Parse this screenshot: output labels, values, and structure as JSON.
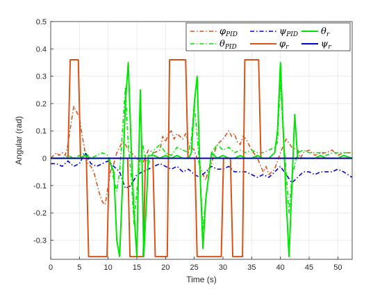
{
  "chart_data": {
    "type": "line",
    "xlabel": "Time (s)",
    "ylabel": "Angular (rad)",
    "xlim": [
      0,
      52.5
    ],
    "ylim": [
      -0.37,
      0.5
    ],
    "xticks": [
      "0",
      "5",
      "10",
      "15",
      "20",
      "25",
      "30",
      "35",
      "40",
      "45",
      "50"
    ],
    "yticks": [
      "-0.3",
      "-0.2",
      "-0.1",
      "0",
      "0.1",
      "0.2",
      "0.3",
      "0.4",
      "0.5"
    ],
    "grid": true,
    "legend_position": "top-right",
    "colors": {
      "phi": "#d95319",
      "psi": "#0000cd",
      "theta": "#00e600",
      "axis": "#262626",
      "grid": "#e6e6e6"
    },
    "series": [
      {
        "name": "φ_PID",
        "base": "φ",
        "sub": "PID",
        "key": "phi_pid",
        "style": "dashdot",
        "color": "#d95319",
        "x": [
          0,
          1,
          1.5,
          2,
          2.5,
          3,
          3.5,
          4,
          4.5,
          5,
          5.5,
          6,
          6.5,
          7,
          7.5,
          8,
          8.5,
          9,
          9.5,
          10,
          10.5,
          11,
          11.5,
          12,
          12.5,
          13,
          13.5,
          14,
          14.5,
          15,
          16,
          17,
          18,
          19,
          19.5,
          20,
          20.5,
          21,
          21.5,
          22,
          22.5,
          23,
          23.5,
          24,
          25,
          26,
          26.5,
          27,
          27.5,
          28,
          28.5,
          29,
          30,
          31,
          31.5,
          32,
          32.5,
          33,
          33.5,
          34,
          35,
          36,
          37,
          37.5,
          38,
          39,
          40,
          41,
          42,
          43,
          43.5,
          44,
          45,
          46,
          47,
          48,
          49,
          50,
          51,
          52.5
        ],
        "y": [
          0,
          0.02,
          0.01,
          0.02,
          0.01,
          0.05,
          0.12,
          0.19,
          0.17,
          0.15,
          0.08,
          0.02,
          -0.02,
          -0.03,
          -0.05,
          -0.09,
          -0.13,
          -0.16,
          -0.17,
          -0.1,
          -0.04,
          -0.02,
          0.02,
          0.04,
          0.06,
          0.05,
          0.03,
          0.02,
          0.01,
          0,
          -0.02,
          0.03,
          0.02,
          0.03,
          0.08,
          0.06,
          0.09,
          0.1,
          0.07,
          0.09,
          0.08,
          0.07,
          0.09,
          0.05,
          0.03,
          -0.03,
          -0.06,
          -0.08,
          -0.04,
          -0.02,
          0.02,
          0.05,
          0.07,
          0.1,
          0.08,
          0.09,
          0.06,
          0.05,
          0.08,
          0.07,
          0.03,
          0,
          -0.05,
          -0.03,
          -0.06,
          -0.04,
          0.02,
          0.07,
          0.04,
          0.03,
          0,
          0.02,
          0.03,
          0.01,
          0.02,
          0.02,
          0.03,
          0.01,
          0.02,
          0.02
        ]
      },
      {
        "name": "θ_PID",
        "base": "θ",
        "sub": "PID",
        "key": "theta_pid",
        "style": "dashdot",
        "color": "#00e600",
        "x": [
          0,
          2,
          3,
          4,
          5,
          6,
          7,
          8,
          9,
          10,
          10.5,
          11,
          11.5,
          12,
          12.5,
          13,
          13.5,
          14,
          14.5,
          15,
          15.5,
          16,
          16.5,
          17,
          18,
          19,
          20,
          21,
          22,
          23,
          24,
          24.5,
          25,
          25.5,
          26,
          26.5,
          27,
          28,
          29,
          30,
          31,
          32,
          33,
          34,
          35,
          36,
          37,
          38,
          39,
          39.5,
          40,
          40.5,
          41,
          41.5,
          42,
          43,
          44,
          45,
          46,
          47,
          48,
          49,
          50,
          51,
          52.5
        ],
        "y": [
          0,
          0,
          0.01,
          0,
          0.01,
          0.02,
          0,
          0.01,
          0.02,
          0.01,
          -0.02,
          -0.08,
          -0.12,
          -0.05,
          0.1,
          0.26,
          0.05,
          -0.06,
          -0.24,
          -0.12,
          -0.02,
          0.05,
          0,
          -0.02,
          0.03,
          0.05,
          0.02,
          0.01,
          0.04,
          0.03,
          0.02,
          0.07,
          0.2,
          0.08,
          -0.05,
          -0.26,
          -0.15,
          0.02,
          0.05,
          0.03,
          0.04,
          0.02,
          0.03,
          0.02,
          0.03,
          0.02,
          0.02,
          0.03,
          0.04,
          0.06,
          0.29,
          0.08,
          -0.05,
          -0.2,
          -0.07,
          0.02,
          0.03,
          0.02,
          0.02,
          0.02,
          0.01,
          0.02,
          0.02,
          0.02,
          0.02
        ]
      },
      {
        "name": "ψ_PID",
        "base": "ψ",
        "sub": "PID",
        "key": "psi_pid",
        "style": "dashdot",
        "color": "#0000cd",
        "x": [
          0,
          1,
          2,
          3,
          4,
          5,
          6,
          7,
          8,
          9,
          10,
          11,
          12,
          13,
          14,
          15,
          16,
          17,
          18,
          19,
          20,
          21,
          22,
          23,
          24,
          25,
          26,
          27,
          28,
          29,
          30,
          31,
          32,
          33,
          34,
          35,
          36,
          37,
          38,
          39,
          40,
          41,
          42,
          43,
          44,
          45,
          46,
          47,
          48,
          49,
          50,
          51,
          52.5
        ],
        "y": [
          -0.02,
          -0.02,
          -0.03,
          -0.01,
          -0.03,
          -0.02,
          0.02,
          -0.02,
          -0.03,
          -0.02,
          -0.01,
          -0.03,
          -0.05,
          -0.11,
          -0.1,
          -0.06,
          -0.05,
          -0.04,
          -0.03,
          -0.02,
          -0.03,
          -0.04,
          -0.03,
          -0.05,
          -0.04,
          -0.06,
          -0.07,
          -0.05,
          -0.03,
          -0.04,
          -0.04,
          -0.03,
          -0.05,
          -0.05,
          -0.05,
          -0.06,
          -0.07,
          -0.06,
          -0.07,
          -0.05,
          -0.03,
          -0.06,
          -0.09,
          -0.07,
          -0.05,
          -0.05,
          -0.06,
          -0.05,
          -0.05,
          -0.05,
          -0.04,
          -0.05,
          -0.07
        ]
      },
      {
        "name": "φ_r",
        "base": "φ",
        "sub": "r",
        "key": "phi_r",
        "style": "solid",
        "color": "#d95319",
        "x": [
          0,
          3,
          3.4,
          4.8,
          5.2,
          6.2,
          6.6,
          9.8,
          10.2,
          11.6,
          12,
          13.4,
          13.8,
          16.1,
          16.5,
          17.8,
          18.2,
          20.3,
          20.7,
          23.5,
          23.9,
          25.1,
          25.5,
          29.7,
          30.1,
          31.3,
          31.7,
          33.4,
          33.8,
          36.2,
          36.6,
          37.8,
          38.2,
          52.5
        ],
        "y": [
          0,
          0,
          0.36,
          0.36,
          0,
          0,
          -0.36,
          -0.36,
          0,
          0,
          0,
          0,
          -0.36,
          -0.36,
          0,
          0,
          -0.36,
          -0.36,
          0.36,
          0.36,
          0,
          0,
          -0.36,
          -0.36,
          0,
          0,
          -0.36,
          -0.36,
          0.36,
          0.36,
          0,
          0,
          0,
          0
        ]
      },
      {
        "name": "θ_r",
        "base": "θ",
        "sub": "r",
        "key": "theta_r",
        "style": "solid",
        "color": "#00e600",
        "x": [
          0,
          2,
          3,
          4,
          5,
          6,
          7,
          8,
          9,
          10,
          11,
          11.5,
          12,
          12.5,
          13,
          13.5,
          14,
          14.5,
          15,
          15.3,
          15.6,
          15.9,
          16.2,
          16.8,
          17,
          18,
          19,
          20,
          21,
          22,
          23,
          24,
          24.5,
          25,
          25.5,
          26,
          26.5,
          27,
          28,
          29,
          30,
          31,
          32,
          33,
          34,
          35,
          36,
          37,
          38,
          39,
          39.5,
          40,
          40.5,
          41,
          41.5,
          42,
          42.5,
          43,
          44,
          45,
          46,
          47,
          48,
          49,
          50,
          51,
          52.5
        ],
        "y": [
          0,
          0,
          0,
          0,
          0,
          0.01,
          0,
          0,
          0,
          0,
          -0.05,
          -0.3,
          -0.36,
          -0.1,
          0.2,
          0.35,
          0.05,
          -0.2,
          -0.36,
          -0.02,
          0.25,
          0,
          -0.36,
          -0.1,
          0.01,
          0.01,
          0,
          0.01,
          0,
          0.01,
          0,
          0,
          0.02,
          0.2,
          0.3,
          -0.05,
          -0.33,
          -0.15,
          0.02,
          0,
          0.01,
          0,
          0,
          0.01,
          0,
          0,
          0.01,
          0,
          0,
          0.02,
          0.1,
          0.35,
          0.1,
          -0.15,
          -0.36,
          -0.1,
          0.16,
          0,
          0,
          0,
          0,
          0.01,
          0,
          0,
          0,
          0.01,
          0
        ]
      },
      {
        "name": "ψ_r",
        "base": "ψ",
        "sub": "r",
        "key": "psi_r",
        "style": "solid",
        "color": "#0000cd",
        "x": [
          0,
          52.5
        ],
        "y": [
          0,
          0
        ]
      }
    ],
    "legend_order": [
      "phi_pid",
      "psi_pid",
      "theta_r",
      "theta_pid",
      "phi_r",
      "psi_r"
    ]
  }
}
